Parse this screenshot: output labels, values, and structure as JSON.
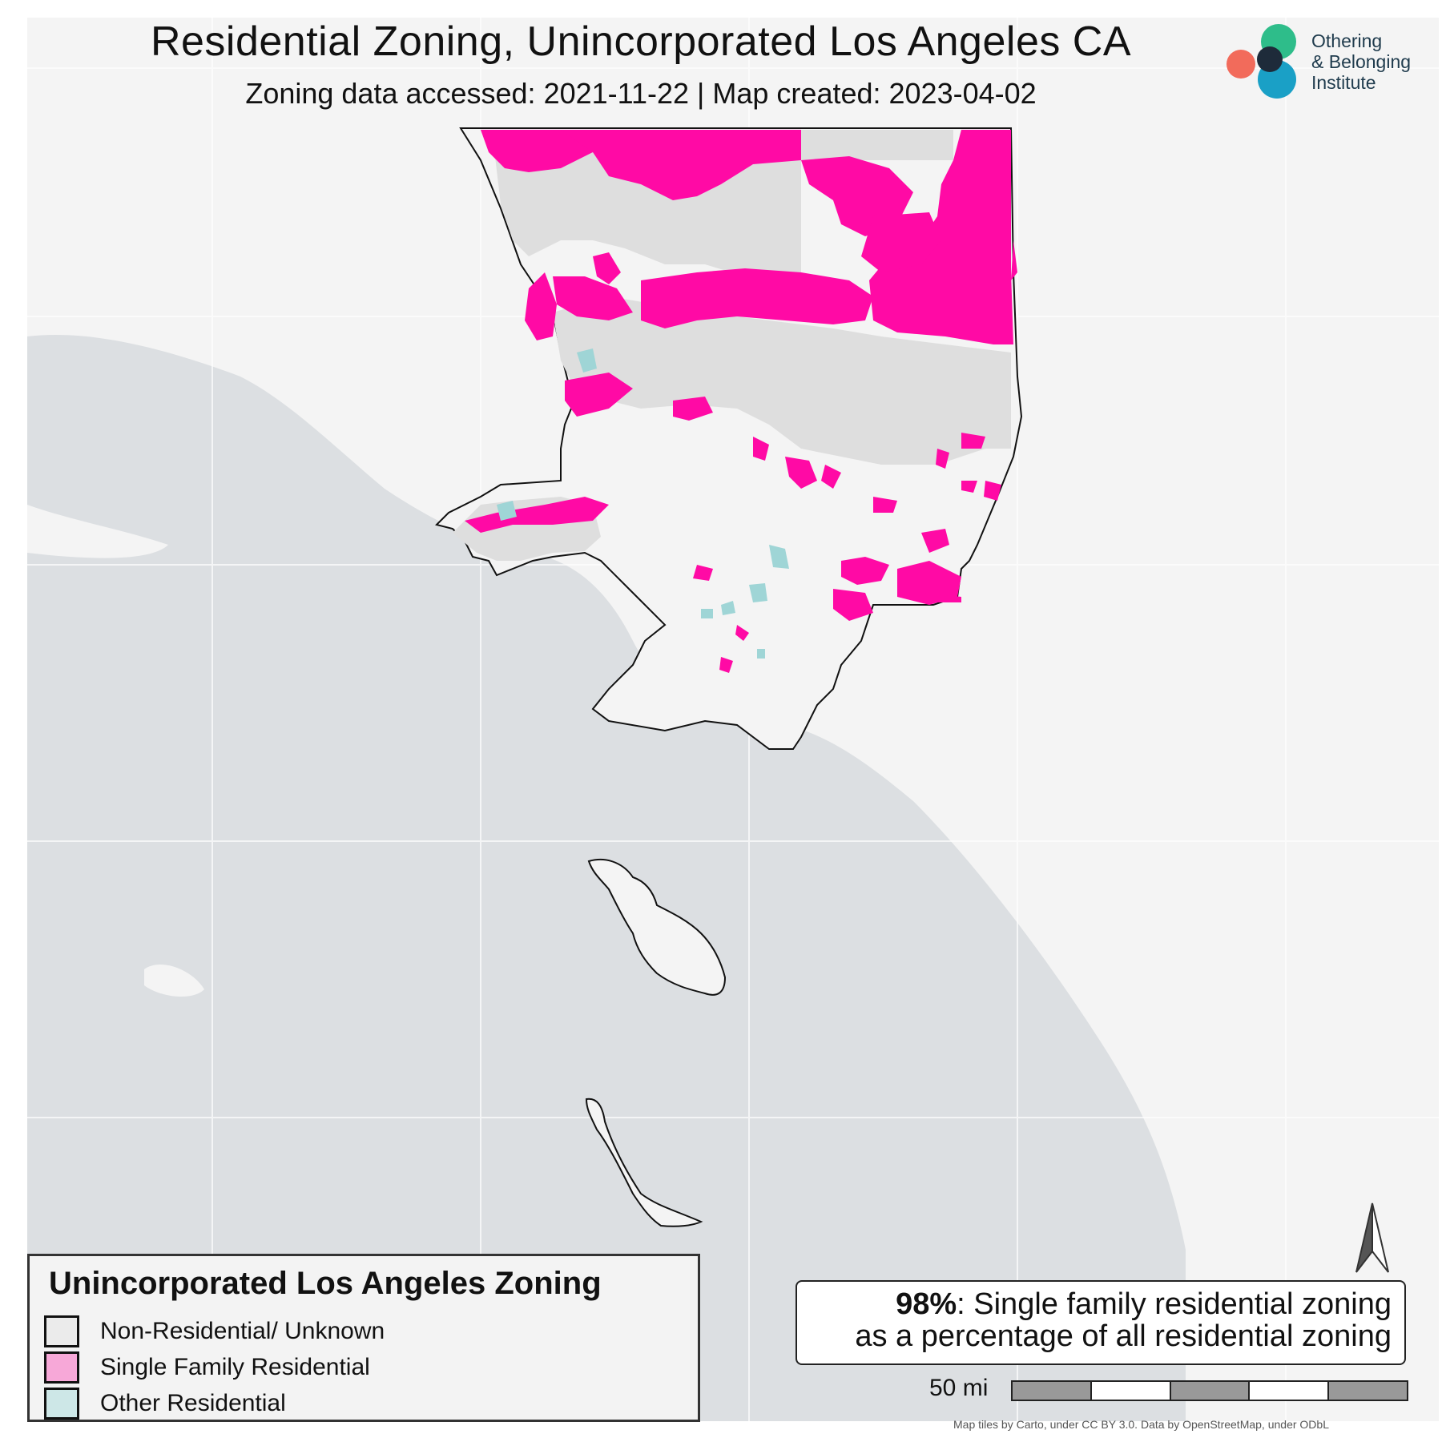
{
  "title": "Residential Zoning, Unincorporated Los Angeles CA",
  "subtitle": "Zoning data accessed: 2021-11-22 | Map created: 2023-04-02",
  "logo": {
    "line1": "Othering",
    "line2": "& Belonging",
    "line3": "Institute",
    "colors": [
      "#f26b5b",
      "#2ebd8a",
      "#1aa0c6",
      "#1e2b3a"
    ]
  },
  "legend": {
    "title": "Unincorporated Los Angeles Zoning",
    "items": [
      {
        "label": "Non-Residential/ Unknown",
        "color": "#ebebeb"
      },
      {
        "label": "Single Family Residential",
        "color": "#f7a8d8"
      },
      {
        "label": "Other Residential",
        "color": "#cde7e7"
      }
    ]
  },
  "stat": {
    "value": "98%",
    "line1_rest": ": Single family residential zoning",
    "line2": "as a percentage of all residential zoning"
  },
  "scale": {
    "label": "50 mi"
  },
  "attribution": "Map tiles by Carto, under CC BY 3.0. Data by OpenStreetMap, under ODbL",
  "colors": {
    "ocean": "#dcdfe2",
    "land": "#f4f4f4",
    "nonresidential": "#dedede",
    "single_family": "#ff0aa5",
    "other_residential": "#9fd5d6",
    "boundary": "#111111"
  },
  "icons": {
    "north_arrow": "north-arrow-icon"
  }
}
